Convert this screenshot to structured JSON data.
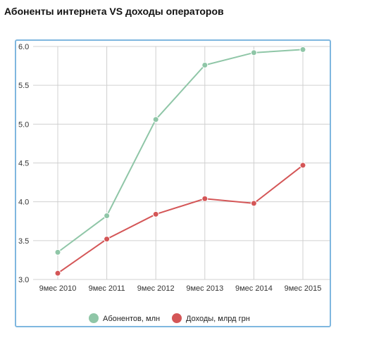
{
  "title": "Абоненты интернета VS доходы операторов",
  "chart_data": {
    "type": "line",
    "title": "",
    "xlabel": "",
    "ylabel": "",
    "categories": [
      "9мес 2010",
      "9мес 2011",
      "9мес 2012",
      "9мес 2013",
      "9мес 2014",
      "9мес 2015"
    ],
    "series": [
      {
        "name": "Абонентов, млн",
        "color": "#8fc6a7",
        "values": [
          3.35,
          3.82,
          5.06,
          5.76,
          5.92,
          5.96
        ]
      },
      {
        "name": "Доходы, млрд грн",
        "color": "#d45657",
        "values": [
          3.08,
          3.52,
          3.84,
          4.04,
          3.98,
          4.47
        ]
      }
    ],
    "ylim": [
      3.0,
      6.0
    ],
    "yticks": [
      "3.0",
      "3.5",
      "4.0",
      "4.5",
      "5.0",
      "5.5",
      "6.0"
    ],
    "grid": true,
    "legend_position": "bottom"
  }
}
